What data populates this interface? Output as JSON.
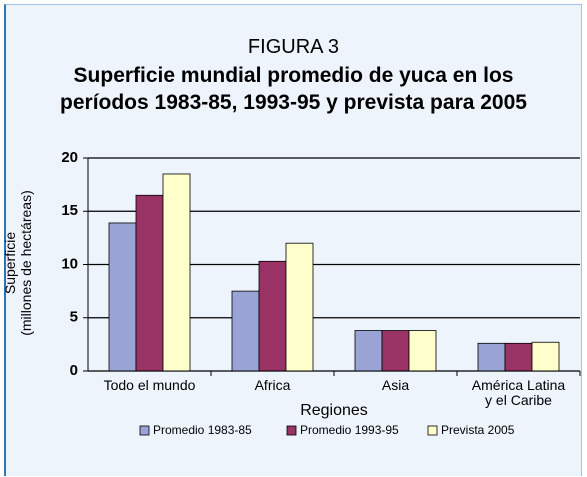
{
  "figure_label": "FIGURA 3",
  "chart_data": {
    "type": "bar",
    "title": "Superficie mundial promedio de yuca en los períodos 1983-85, 1993-95 y prevista para 2005",
    "xlabel": "Regiones",
    "ylabel": "Superficie\n(millones de hectáreas)",
    "categories": [
      "Todo el mundo",
      "Africa",
      "Asia",
      "América Latina\ny el Caribe"
    ],
    "series": [
      {
        "name": "Promedio 1983-85",
        "color": "#9aa3d6",
        "values": [
          13.9,
          7.5,
          3.8,
          2.6
        ]
      },
      {
        "name": "Promedio 1993-95",
        "color": "#993366",
        "values": [
          16.5,
          10.3,
          3.8,
          2.6
        ]
      },
      {
        "name": "Prevista 2005",
        "color": "#ffffcc",
        "values": [
          18.5,
          12.0,
          3.8,
          2.7
        ]
      }
    ],
    "ylim": [
      0,
      20
    ],
    "yticks": [
      0,
      5,
      10,
      15,
      20
    ],
    "grid": true,
    "legend": "bottom"
  }
}
